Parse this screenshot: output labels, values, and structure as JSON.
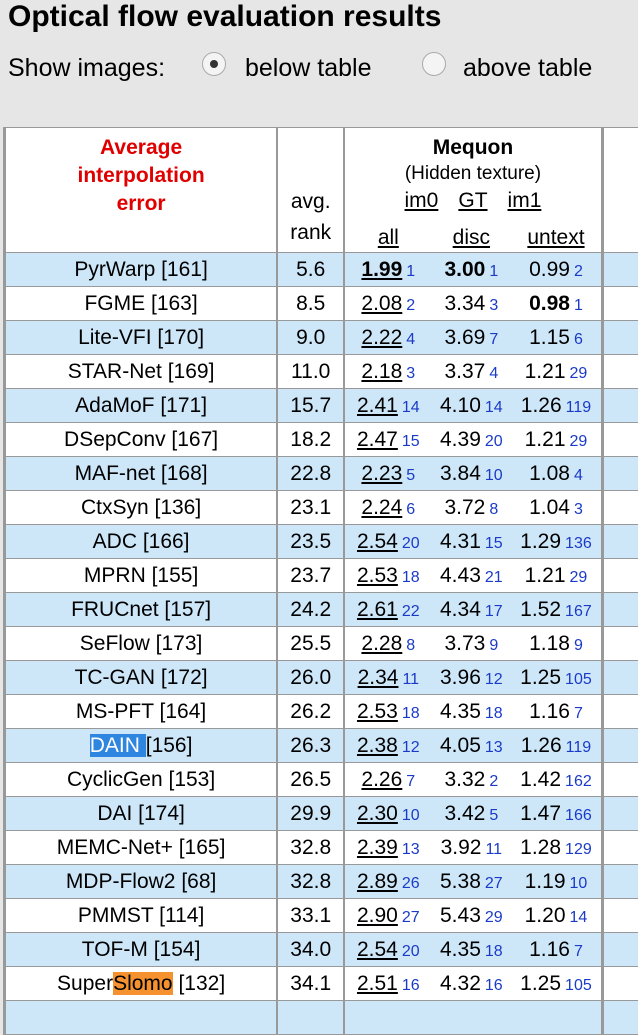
{
  "header": {
    "title": "Optical flow evaluation results",
    "show_images_label": "Show images:",
    "options": [
      {
        "label": "below table",
        "checked": true
      },
      {
        "label": "above table",
        "checked": false
      }
    ]
  },
  "table": {
    "method_header": [
      "Average",
      "interpolation",
      "error"
    ],
    "avg_rank_header": [
      "avg.",
      "rank"
    ],
    "dataset": {
      "name": "Mequon",
      "subtitle": "(Hidden texture)",
      "links": [
        "im0",
        "GT",
        "im1"
      ],
      "columns": [
        "all",
        "disc",
        "untext"
      ]
    },
    "rows": [
      {
        "method": [
          "PyrWarp [161]"
        ],
        "avg": "5.6",
        "cells": [
          [
            "1.99",
            1
          ],
          [
            "3.00",
            1
          ],
          [
            "0.99",
            2
          ]
        ],
        "bold": [
          0,
          1
        ]
      },
      {
        "method": [
          "FGME [163]"
        ],
        "avg": "8.5",
        "cells": [
          [
            "2.08",
            2
          ],
          [
            "3.34",
            3
          ],
          [
            "0.98",
            1
          ]
        ],
        "bold": [
          2
        ]
      },
      {
        "method": [
          "Lite-VFI [170]"
        ],
        "avg": "9.0",
        "cells": [
          [
            "2.22",
            4
          ],
          [
            "3.69",
            7
          ],
          [
            "1.15",
            6
          ]
        ]
      },
      {
        "method": [
          "STAR-Net [169]"
        ],
        "avg": "11.0",
        "cells": [
          [
            "2.18",
            3
          ],
          [
            "3.37",
            4
          ],
          [
            "1.21",
            29
          ]
        ]
      },
      {
        "method": [
          "AdaMoF [171]"
        ],
        "avg": "15.7",
        "cells": [
          [
            "2.41",
            14
          ],
          [
            "4.10",
            14
          ],
          [
            "1.26",
            119
          ]
        ]
      },
      {
        "method": [
          "DSepConv [167]"
        ],
        "avg": "18.2",
        "cells": [
          [
            "2.47",
            15
          ],
          [
            "4.39",
            20
          ],
          [
            "1.21",
            29
          ]
        ]
      },
      {
        "method": [
          "MAF-net [168]"
        ],
        "avg": "22.8",
        "cells": [
          [
            "2.23",
            5
          ],
          [
            "3.84",
            10
          ],
          [
            "1.08",
            4
          ]
        ]
      },
      {
        "method": [
          "CtxSyn [136]"
        ],
        "avg": "23.1",
        "cells": [
          [
            "2.24",
            6
          ],
          [
            "3.72",
            8
          ],
          [
            "1.04",
            3
          ]
        ]
      },
      {
        "method": [
          "ADC [166]"
        ],
        "avg": "23.5",
        "cells": [
          [
            "2.54",
            20
          ],
          [
            "4.31",
            15
          ],
          [
            "1.29",
            136
          ]
        ]
      },
      {
        "method": [
          "MPRN [155]"
        ],
        "avg": "23.7",
        "cells": [
          [
            "2.53",
            18
          ],
          [
            "4.43",
            21
          ],
          [
            "1.21",
            29
          ]
        ]
      },
      {
        "method": [
          "FRUCnet [157]"
        ],
        "avg": "24.2",
        "cells": [
          [
            "2.61",
            22
          ],
          [
            "4.34",
            17
          ],
          [
            "1.52",
            167
          ]
        ]
      },
      {
        "method": [
          "SeFlow [173]"
        ],
        "avg": "25.5",
        "cells": [
          [
            "2.28",
            8
          ],
          [
            "3.73",
            9
          ],
          [
            "1.18",
            9
          ]
        ]
      },
      {
        "method": [
          "TC-GAN [172]"
        ],
        "avg": "26.0",
        "cells": [
          [
            "2.34",
            11
          ],
          [
            "3.96",
            12
          ],
          [
            "1.25",
            105
          ]
        ]
      },
      {
        "method": [
          "MS-PFT [164]"
        ],
        "avg": "26.2",
        "cells": [
          [
            "2.53",
            18
          ],
          [
            "4.35",
            18
          ],
          [
            "1.16",
            7
          ]
        ]
      },
      {
        "method": [
          "DAIN ",
          "[156]"
        ],
        "highlight": [
          0,
          "#2f86e0"
        ],
        "avg": "26.3",
        "cells": [
          [
            "2.38",
            12
          ],
          [
            "4.05",
            13
          ],
          [
            "1.26",
            119
          ]
        ]
      },
      {
        "method": [
          "CyclicGen [153]"
        ],
        "avg": "26.5",
        "cells": [
          [
            "2.26",
            7
          ],
          [
            "3.32",
            2
          ],
          [
            "1.42",
            162
          ]
        ]
      },
      {
        "method": [
          "DAI [174]"
        ],
        "avg": "29.9",
        "cells": [
          [
            "2.30",
            10
          ],
          [
            "3.42",
            5
          ],
          [
            "1.47",
            166
          ]
        ]
      },
      {
        "method": [
          "MEMC-Net+ [165]"
        ],
        "avg": "32.8",
        "cells": [
          [
            "2.39",
            13
          ],
          [
            "3.92",
            11
          ],
          [
            "1.28",
            129
          ]
        ]
      },
      {
        "method": [
          "MDP-Flow2 [68]"
        ],
        "avg": "32.8",
        "cells": [
          [
            "2.89",
            26
          ],
          [
            "5.38",
            27
          ],
          [
            "1.19",
            10
          ]
        ]
      },
      {
        "method": [
          "PMMST [114]"
        ],
        "avg": "33.1",
        "cells": [
          [
            "2.90",
            27
          ],
          [
            "5.43",
            29
          ],
          [
            "1.20",
            14
          ]
        ]
      },
      {
        "method": [
          "TOF-M [154]"
        ],
        "avg": "34.0",
        "cells": [
          [
            "2.54",
            20
          ],
          [
            "4.35",
            18
          ],
          [
            "1.16",
            7
          ]
        ]
      },
      {
        "method": [
          "Super",
          "Slomo",
          " [132]"
        ],
        "highlight": [
          1,
          "#f5922f"
        ],
        "avg": "34.1",
        "cells": [
          [
            "2.51",
            16
          ],
          [
            "4.32",
            16
          ],
          [
            "1.25",
            105
          ]
        ]
      }
    ]
  }
}
